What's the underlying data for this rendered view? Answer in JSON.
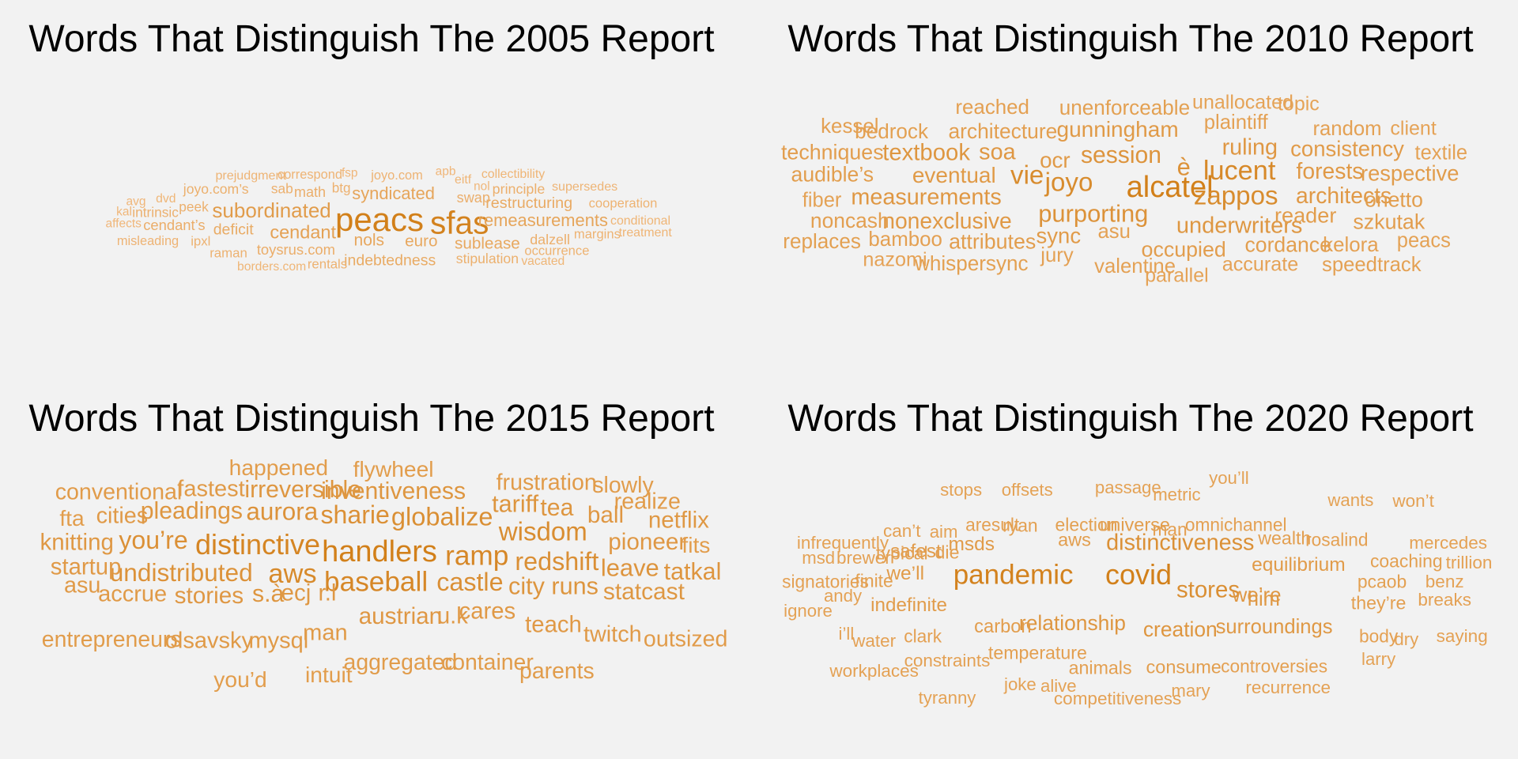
{
  "panels": [
    {
      "title": "Words That Distinguish The 2005 Report",
      "words": [
        {
          "text": "peacs",
          "weight": 1.0
        },
        {
          "text": "sfas",
          "weight": 0.97
        },
        {
          "text": "subordinated",
          "weight": 0.62
        },
        {
          "text": "cendant",
          "weight": 0.55
        },
        {
          "text": "remeasurements",
          "weight": 0.5
        },
        {
          "text": "syndicated",
          "weight": 0.5
        },
        {
          "text": "nols",
          "weight": 0.47
        },
        {
          "text": "euro",
          "weight": 0.46
        },
        {
          "text": "sublease",
          "weight": 0.46
        },
        {
          "text": "restructuring",
          "weight": 0.43
        },
        {
          "text": "indebtedness",
          "weight": 0.42
        },
        {
          "text": "deficit",
          "weight": 0.42
        },
        {
          "text": "toysrus.com",
          "weight": 0.38
        },
        {
          "text": "cendant’s",
          "weight": 0.38
        },
        {
          "text": "math",
          "weight": 0.37
        },
        {
          "text": "swap",
          "weight": 0.37
        },
        {
          "text": "principle",
          "weight": 0.36
        },
        {
          "text": "dalzell",
          "weight": 0.36
        },
        {
          "text": "stipulation",
          "weight": 0.35
        },
        {
          "text": "joyo.com’s",
          "weight": 0.35
        },
        {
          "text": "intrinsic",
          "weight": 0.34
        },
        {
          "text": "peek",
          "weight": 0.34
        },
        {
          "text": "sab",
          "weight": 0.34
        },
        {
          "text": "btg",
          "weight": 0.33
        },
        {
          "text": "rentals",
          "weight": 0.32
        },
        {
          "text": "raman",
          "weight": 0.32
        },
        {
          "text": "ipxl",
          "weight": 0.32
        },
        {
          "text": "margins",
          "weight": 0.31
        },
        {
          "text": "occurrence",
          "weight": 0.31
        },
        {
          "text": "cooperation",
          "weight": 0.31
        },
        {
          "text": "correspond",
          "weight": 0.3
        },
        {
          "text": "misleading",
          "weight": 0.3
        },
        {
          "text": "joyo.com",
          "weight": 0.3
        },
        {
          "text": "prejudgment",
          "weight": 0.29
        },
        {
          "text": "supersedes",
          "weight": 0.29
        },
        {
          "text": "collectibility",
          "weight": 0.28
        },
        {
          "text": "conditional",
          "weight": 0.28
        },
        {
          "text": "treatment",
          "weight": 0.28
        },
        {
          "text": "eitf",
          "weight": 0.28
        },
        {
          "text": "vacated",
          "weight": 0.27
        },
        {
          "text": "borders.com",
          "weight": 0.27
        },
        {
          "text": "dvd",
          "weight": 0.27
        },
        {
          "text": "avg",
          "weight": 0.26
        },
        {
          "text": "affects",
          "weight": 0.26
        },
        {
          "text": "kal",
          "weight": 0.26
        },
        {
          "text": "fsp",
          "weight": 0.26
        },
        {
          "text": "apb",
          "weight": 0.26
        },
        {
          "text": "nol",
          "weight": 0.25
        }
      ]
    },
    {
      "title": "Words That Distinguish The 2010 Report",
      "words": [
        {
          "text": "alcatel",
          "weight": 1.0
        },
        {
          "text": "lucent",
          "weight": 0.88
        },
        {
          "text": "zappos",
          "weight": 0.84
        },
        {
          "text": "joyo",
          "weight": 0.84
        },
        {
          "text": "vie",
          "weight": 0.84
        },
        {
          "text": "purporting",
          "weight": 0.76
        },
        {
          "text": "è",
          "weight": 0.76
        },
        {
          "text": "session",
          "weight": 0.73
        },
        {
          "text": "textbook",
          "weight": 0.7
        },
        {
          "text": "underwriters",
          "weight": 0.69
        },
        {
          "text": "ruling",
          "weight": 0.68
        },
        {
          "text": "measurements",
          "weight": 0.68
        },
        {
          "text": "soa",
          "weight": 0.68
        },
        {
          "text": "architects",
          "weight": 0.66
        },
        {
          "text": "forests",
          "weight": 0.66
        },
        {
          "text": "nonexclusive",
          "weight": 0.66
        },
        {
          "text": "gunningham",
          "weight": 0.65
        },
        {
          "text": "eventual",
          "weight": 0.65
        },
        {
          "text": "ocr",
          "weight": 0.64
        },
        {
          "text": "consistency",
          "weight": 0.63
        },
        {
          "text": "sync",
          "weight": 0.63
        },
        {
          "text": "respective",
          "weight": 0.62
        },
        {
          "text": "reader",
          "weight": 0.61
        },
        {
          "text": "techniques",
          "weight": 0.6
        },
        {
          "text": "szkutak",
          "weight": 0.6
        },
        {
          "text": "attributes",
          "weight": 0.6
        },
        {
          "text": "occupied",
          "weight": 0.6
        },
        {
          "text": "onetto",
          "weight": 0.59
        },
        {
          "text": "cordance",
          "weight": 0.59
        },
        {
          "text": "audible’s",
          "weight": 0.59
        },
        {
          "text": "architecture",
          "weight": 0.58
        },
        {
          "text": "noncash",
          "weight": 0.58
        },
        {
          "text": "unenforceable",
          "weight": 0.57
        },
        {
          "text": "replaces",
          "weight": 0.57
        },
        {
          "text": "bedrock",
          "weight": 0.57
        },
        {
          "text": "whispersync",
          "weight": 0.57
        },
        {
          "text": "kelora",
          "weight": 0.56
        },
        {
          "text": "reached",
          "weight": 0.56
        },
        {
          "text": "kessel",
          "weight": 0.56
        },
        {
          "text": "bamboo",
          "weight": 0.56
        },
        {
          "text": "random",
          "weight": 0.55
        },
        {
          "text": "plaintiff",
          "weight": 0.55
        },
        {
          "text": "valentine",
          "weight": 0.55
        },
        {
          "text": "speedtrack",
          "weight": 0.55
        },
        {
          "text": "asu",
          "weight": 0.55
        },
        {
          "text": "jury",
          "weight": 0.55
        },
        {
          "text": "textile",
          "weight": 0.54
        },
        {
          "text": "fiber",
          "weight": 0.54
        },
        {
          "text": "peacs",
          "weight": 0.54
        },
        {
          "text": "accurate",
          "weight": 0.53
        },
        {
          "text": "nazomi",
          "weight": 0.53
        },
        {
          "text": "unallocated",
          "weight": 0.52
        },
        {
          "text": "topic",
          "weight": 0.52
        },
        {
          "text": "client",
          "weight": 0.52
        },
        {
          "text": "parallel",
          "weight": 0.52
        }
      ]
    },
    {
      "title": "Words That Distinguish The 2015 Report",
      "words": [
        {
          "text": "handlers",
          "weight": 1.0
        },
        {
          "text": "distinctive",
          "weight": 0.93
        },
        {
          "text": "baseball",
          "weight": 0.9
        },
        {
          "text": "ramp",
          "weight": 0.9
        },
        {
          "text": "aws",
          "weight": 0.87
        },
        {
          "text": "wisdom",
          "weight": 0.82
        },
        {
          "text": "globalize",
          "weight": 0.8
        },
        {
          "text": "castle",
          "weight": 0.79
        },
        {
          "text": "redshift",
          "weight": 0.79
        },
        {
          "text": "sharie",
          "weight": 0.78
        },
        {
          "text": "you’re",
          "weight": 0.78
        },
        {
          "text": "undistributed",
          "weight": 0.76
        },
        {
          "text": "aurora",
          "weight": 0.75
        },
        {
          "text": "leave",
          "weight": 0.73
        },
        {
          "text": "city runs",
          "weight": 0.72
        },
        {
          "text": "tariff",
          "weight": 0.72
        },
        {
          "text": "tatkal",
          "weight": 0.71
        },
        {
          "text": "inventiveness",
          "weight": 0.7
        },
        {
          "text": "tea",
          "weight": 0.7
        },
        {
          "text": "irreversible",
          "weight": 0.7
        },
        {
          "text": "s.à",
          "weight": 0.7
        },
        {
          "text": "pleadings",
          "weight": 0.7
        },
        {
          "text": "statcast",
          "weight": 0.69
        },
        {
          "text": "pioneer",
          "weight": 0.68
        },
        {
          "text": "austrian",
          "weight": 0.68
        },
        {
          "text": "ball",
          "weight": 0.68
        },
        {
          "text": "stories",
          "weight": 0.68
        },
        {
          "text": "netflix",
          "weight": 0.67
        },
        {
          "text": "knitting",
          "weight": 0.67
        },
        {
          "text": "r.l",
          "weight": 0.67
        },
        {
          "text": "ecj",
          "weight": 0.67
        },
        {
          "text": "startup",
          "weight": 0.66
        },
        {
          "text": "cares",
          "weight": 0.66
        },
        {
          "text": "u.k",
          "weight": 0.66
        },
        {
          "text": "teach",
          "weight": 0.66
        },
        {
          "text": "accrue",
          "weight": 0.65
        },
        {
          "text": "olsavsky",
          "weight": 0.65
        },
        {
          "text": "mysql",
          "weight": 0.65
        },
        {
          "text": "fastest",
          "weight": 0.65
        },
        {
          "text": "man",
          "weight": 0.65
        },
        {
          "text": "cities",
          "weight": 0.64
        },
        {
          "text": "asu",
          "weight": 0.64
        },
        {
          "text": "twitch",
          "weight": 0.64
        },
        {
          "text": "outsized",
          "weight": 0.63
        },
        {
          "text": "frustration",
          "weight": 0.63
        },
        {
          "text": "conventional",
          "weight": 0.63
        },
        {
          "text": "realize",
          "weight": 0.63
        },
        {
          "text": "slowly",
          "weight": 0.62
        },
        {
          "text": "entrepreneurs",
          "weight": 0.62
        },
        {
          "text": "aggregated",
          "weight": 0.62
        },
        {
          "text": "container",
          "weight": 0.62
        },
        {
          "text": "parents",
          "weight": 0.62
        },
        {
          "text": "flywheel",
          "weight": 0.61
        },
        {
          "text": "happened",
          "weight": 0.61
        },
        {
          "text": "fits",
          "weight": 0.61
        },
        {
          "text": "fta",
          "weight": 0.61
        },
        {
          "text": "you’d",
          "weight": 0.61
        },
        {
          "text": "intuit",
          "weight": 0.61
        }
      ]
    },
    {
      "title": "Words That Distinguish The 2020 Report",
      "words": [
        {
          "text": "covid",
          "weight": 1.0
        },
        {
          "text": "pandemic",
          "weight": 0.97
        },
        {
          "text": "stores",
          "weight": 0.8
        },
        {
          "text": "distinctiveness",
          "weight": 0.78
        },
        {
          "text": "creation",
          "weight": 0.7
        },
        {
          "text": "relationship",
          "weight": 0.7
        },
        {
          "text": "we’re",
          "weight": 0.68
        },
        {
          "text": "surroundings",
          "weight": 0.67
        },
        {
          "text": "him",
          "weight": 0.67
        },
        {
          "text": "we’ll",
          "weight": 0.63
        },
        {
          "text": "equilibrium",
          "weight": 0.63
        },
        {
          "text": "msds",
          "weight": 0.63
        },
        {
          "text": "indefinite",
          "weight": 0.62
        },
        {
          "text": "safest",
          "weight": 0.62
        },
        {
          "text": "carbon",
          "weight": 0.6
        },
        {
          "text": "consume",
          "weight": 0.59
        },
        {
          "text": "universe",
          "weight": 0.59
        },
        {
          "text": "aws",
          "weight": 0.59
        },
        {
          "text": "temperature",
          "weight": 0.58
        },
        {
          "text": "animals",
          "weight": 0.58
        },
        {
          "text": "wealth",
          "weight": 0.58
        },
        {
          "text": "they’re",
          "weight": 0.58
        },
        {
          "text": "typical",
          "weight": 0.58
        },
        {
          "text": "die",
          "weight": 0.58
        },
        {
          "text": "ryan",
          "weight": 0.57
        },
        {
          "text": "finite",
          "weight": 0.57
        },
        {
          "text": "coaching",
          "weight": 0.57
        },
        {
          "text": "pcaob",
          "weight": 0.57
        },
        {
          "text": "election",
          "weight": 0.57
        },
        {
          "text": "controversies",
          "weight": 0.56
        },
        {
          "text": "man",
          "weight": 0.56
        },
        {
          "text": "omnichannel",
          "weight": 0.56
        },
        {
          "text": "rosalind",
          "weight": 0.56
        },
        {
          "text": "aresult",
          "weight": 0.56
        },
        {
          "text": "clark",
          "weight": 0.56
        },
        {
          "text": "body",
          "weight": 0.56
        },
        {
          "text": "signatories",
          "weight": 0.56
        },
        {
          "text": "brewer",
          "weight": 0.55
        },
        {
          "text": "competitiveness",
          "weight": 0.55
        },
        {
          "text": "mercedes",
          "weight": 0.55
        },
        {
          "text": "trillion",
          "weight": 0.55
        },
        {
          "text": "constraints",
          "weight": 0.55
        },
        {
          "text": "breaks",
          "weight": 0.55
        },
        {
          "text": "benz",
          "weight": 0.55
        },
        {
          "text": "infrequently",
          "weight": 0.55
        },
        {
          "text": "can’t",
          "weight": 0.55
        },
        {
          "text": "won’t",
          "weight": 0.55
        },
        {
          "text": "workplaces",
          "weight": 0.55
        },
        {
          "text": "recurrence",
          "weight": 0.55
        },
        {
          "text": "saying",
          "weight": 0.55
        },
        {
          "text": "water",
          "weight": 0.55
        },
        {
          "text": "passage",
          "weight": 0.54
        },
        {
          "text": "you’ll",
          "weight": 0.54
        },
        {
          "text": "tyranny",
          "weight": 0.54
        },
        {
          "text": "wants",
          "weight": 0.54
        },
        {
          "text": "metric",
          "weight": 0.54
        },
        {
          "text": "joke",
          "weight": 0.54
        },
        {
          "text": "alive",
          "weight": 0.54
        },
        {
          "text": "mary",
          "weight": 0.54
        },
        {
          "text": "larry",
          "weight": 0.54
        },
        {
          "text": "dry",
          "weight": 0.54
        },
        {
          "text": "andy",
          "weight": 0.54
        },
        {
          "text": "ignore",
          "weight": 0.54
        },
        {
          "text": "aim",
          "weight": 0.54
        },
        {
          "text": "stops",
          "weight": 0.54
        },
        {
          "text": "offsets",
          "weight": 0.54
        },
        {
          "text": "msd",
          "weight": 0.54
        },
        {
          "text": "i’ll",
          "weight": 0.54
        }
      ]
    }
  ],
  "colors": {
    "background": "#f2f2f2",
    "title": "#000000",
    "word_dark": "#d2801a",
    "word_light": "#f0b77a"
  }
}
